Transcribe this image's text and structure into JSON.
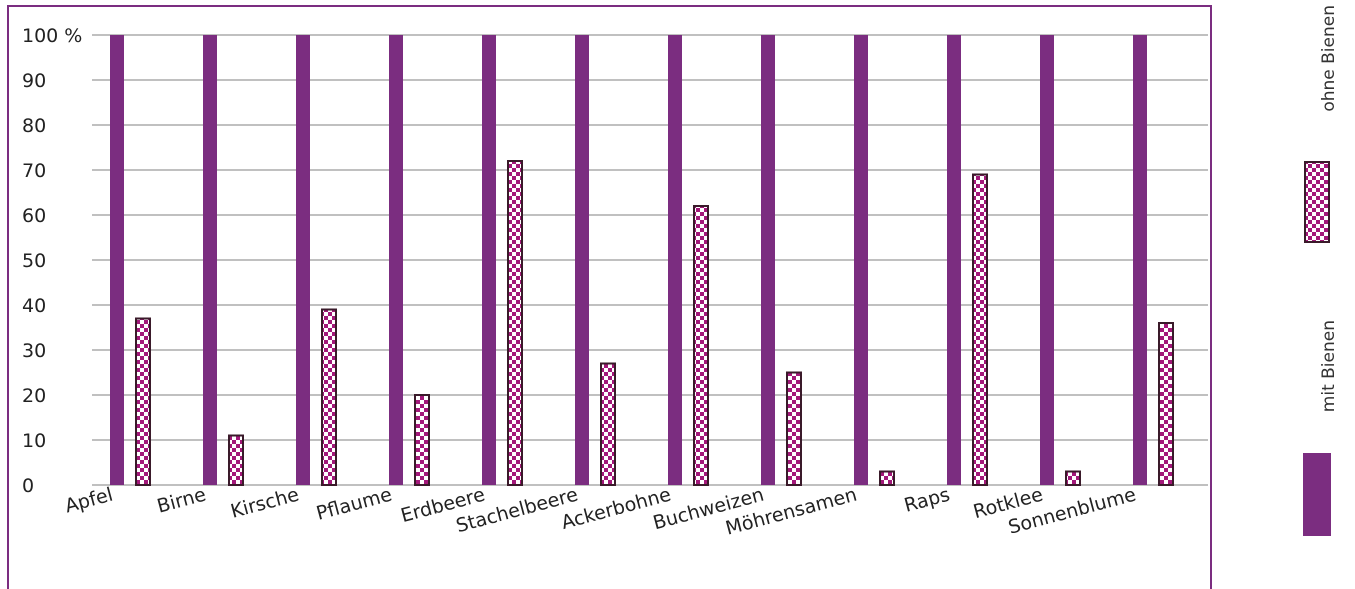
{
  "chart_data": {
    "type": "bar",
    "title": "",
    "xlabel": "",
    "ylabel": "",
    "ylim": [
      0,
      100
    ],
    "yticks": [
      {
        "value": 0,
        "label": "0"
      },
      {
        "value": 10,
        "label": "10"
      },
      {
        "value": 20,
        "label": "20"
      },
      {
        "value": 30,
        "label": "30"
      },
      {
        "value": 40,
        "label": "40"
      },
      {
        "value": 50,
        "label": "50"
      },
      {
        "value": 60,
        "label": "60"
      },
      {
        "value": 70,
        "label": "70"
      },
      {
        "value": 80,
        "label": "80"
      },
      {
        "value": 90,
        "label": "90"
      },
      {
        "value": 100,
        "label": "100 %"
      }
    ],
    "grid": true,
    "legend_position": "right",
    "categories": [
      "Apfel",
      "Birne",
      "Kirsche",
      "Pflaume",
      "Erdbeere",
      "Stachelbeere",
      "Ackerbohne",
      "Buchweizen",
      "Möhrensamen",
      "Raps",
      "Rotklee",
      "Sonnenblume"
    ],
    "series": [
      {
        "name": "mit Bienen",
        "color": "#7B2D80",
        "pattern": "solid",
        "values": [
          100,
          100,
          100,
          100,
          100,
          100,
          100,
          100,
          100,
          100,
          100,
          100
        ]
      },
      {
        "name": "ohne Bienen",
        "color": "#A3187A",
        "pattern": "checkered",
        "values": [
          37,
          11,
          39,
          20,
          72,
          27,
          62,
          25,
          3,
          69,
          3,
          36
        ]
      }
    ],
    "colors": {
      "frame": "#7B2D80",
      "grid": "#9a9a9a",
      "checker_dark": "#A3187A",
      "checker_light": "#ffffff",
      "checker_border": "#3a1a2a"
    }
  }
}
